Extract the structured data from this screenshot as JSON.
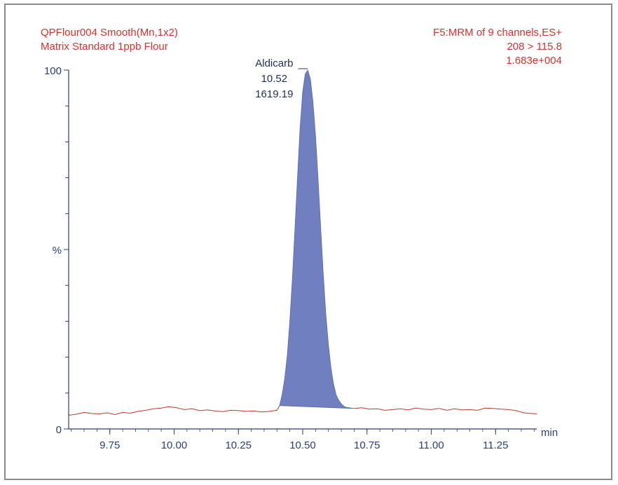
{
  "header": {
    "left": [
      "QPFlour004  Smooth(Mn,1x2)",
      "Matrix Standard 1ppb Flour"
    ],
    "right": [
      "F5:MRM of 9 channels,ES+",
      "208 > 115.8",
      "1.683e+004"
    ]
  },
  "colors": {
    "header_text": "#d8322c",
    "axis": "#2a3f7a",
    "peak_fill": "#6f7fc0",
    "baseline": "#c0392b"
  },
  "chart_data": {
    "type": "line",
    "title": "Matrix Standard 1ppb Flour",
    "xlabel": "min",
    "ylabel": "%",
    "xlim": [
      9.59,
      11.41
    ],
    "ylim": [
      0,
      100
    ],
    "x_ticks": [
      9.75,
      10.0,
      10.25,
      10.5,
      10.75,
      11.0,
      11.25
    ],
    "x_tick_labels": [
      "9.75",
      "10.00",
      "10.25",
      "10.50",
      "10.75",
      "11.00",
      "11.25"
    ],
    "y_tick_labels": [
      "0",
      "%",
      "100"
    ],
    "series": [
      {
        "name": "208 > 115.8",
        "x": [
          9.59,
          9.62,
          9.65,
          9.68,
          9.71,
          9.74,
          9.77,
          9.8,
          9.83,
          9.86,
          9.89,
          9.92,
          9.95,
          9.98,
          10.01,
          10.04,
          10.07,
          10.1,
          10.13,
          10.16,
          10.19,
          10.22,
          10.25,
          10.28,
          10.31,
          10.34,
          10.37,
          10.4,
          10.41,
          10.42,
          10.43,
          10.44,
          10.45,
          10.46,
          10.47,
          10.48,
          10.49,
          10.5,
          10.51,
          10.52,
          10.53,
          10.54,
          10.55,
          10.56,
          10.57,
          10.58,
          10.59,
          10.6,
          10.61,
          10.62,
          10.63,
          10.64,
          10.65,
          10.66,
          10.67,
          10.68,
          10.69,
          10.7,
          10.73,
          10.76,
          10.79,
          10.82,
          10.85,
          10.88,
          10.91,
          10.94,
          10.97,
          11.0,
          11.03,
          11.06,
          11.09,
          11.12,
          11.15,
          11.18,
          11.21,
          11.24,
          11.27,
          11.3,
          11.33,
          11.36,
          11.39,
          11.41
        ],
        "y": [
          3.8,
          4.1,
          4.6,
          4.3,
          4.2,
          4.5,
          4.0,
          4.6,
          4.4,
          4.9,
          5.2,
          5.6,
          5.8,
          6.2,
          5.9,
          5.4,
          5.6,
          5.1,
          5.3,
          5.0,
          4.8,
          5.2,
          5.1,
          4.9,
          5.0,
          4.7,
          4.9,
          5.2,
          6.5,
          9.5,
          14.0,
          20.5,
          30.0,
          42.0,
          56.0,
          70.5,
          84.0,
          94.0,
          99.0,
          100.0,
          97.5,
          91.0,
          81.5,
          69.5,
          56.0,
          43.0,
          32.0,
          23.5,
          17.0,
          12.5,
          9.5,
          8.0,
          7.0,
          6.3,
          6.0,
          5.9,
          5.8,
          5.7,
          5.9,
          5.5,
          5.6,
          5.2,
          5.4,
          5.6,
          5.3,
          5.8,
          5.5,
          5.4,
          5.7,
          5.2,
          5.6,
          5.3,
          5.4,
          5.2,
          5.8,
          5.7,
          5.5,
          5.4,
          5.1,
          4.5,
          4.3,
          4.2
        ]
      }
    ],
    "peak": {
      "name": "Aldicarb",
      "rt": "10.52",
      "area": "1619.19",
      "start_x": 10.41,
      "end_x": 10.7,
      "apex_x": 10.52
    }
  }
}
